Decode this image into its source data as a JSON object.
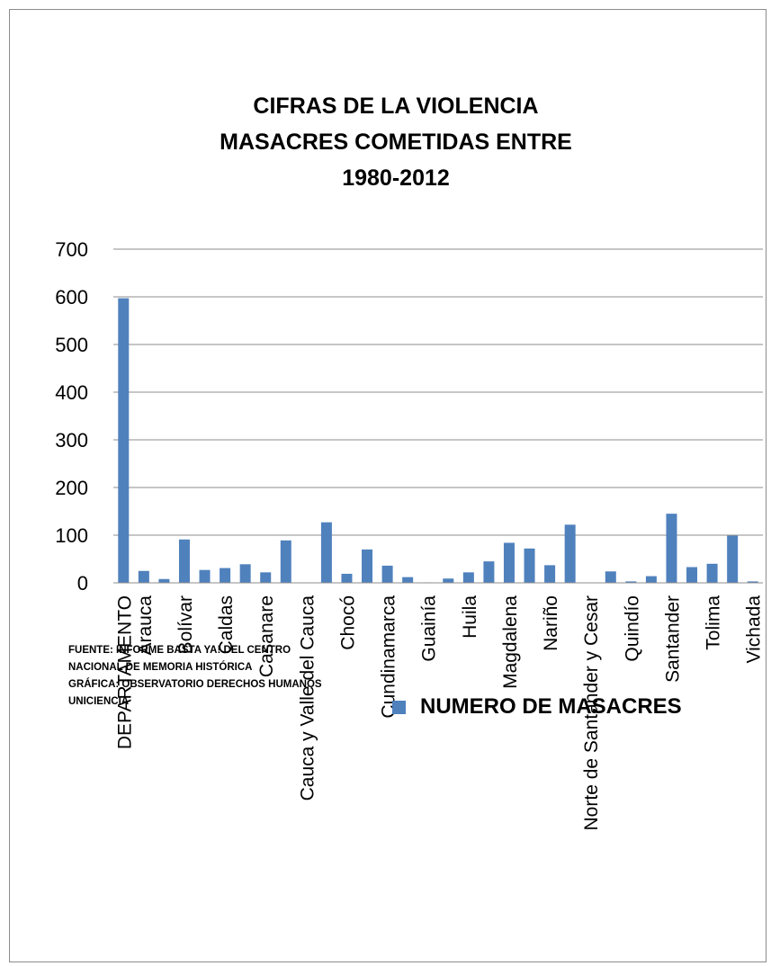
{
  "chart_data": {
    "type": "bar",
    "title": [
      "CIFRAS DE LA VIOLENCIA",
      "MASACRES COMETIDAS ENTRE",
      "1980-2012"
    ],
    "categories": [
      "DEPARTAMENTO",
      "Arauca",
      "",
      "Bolívar",
      "",
      "Caldas",
      "",
      "Casanare",
      "",
      "Cauca y Valle del Cauca",
      "",
      "Chocó",
      "",
      "Cundinamarca",
      "",
      "Guainía",
      "",
      "Huila",
      "",
      "Magdalena",
      "",
      "Nariño",
      "",
      "Norte de Santander y Cesar",
      "",
      "Quindío",
      "",
      "Santander",
      "",
      "Tolima",
      "",
      "Vichada"
    ],
    "series": [
      {
        "name": "NUMERO DE MASACRES",
        "values": [
          597,
          25,
          8,
          91,
          27,
          31,
          39,
          22,
          89,
          0,
          127,
          19,
          70,
          36,
          12,
          1,
          9,
          22,
          45,
          84,
          72,
          37,
          122,
          0,
          24,
          3,
          14,
          145,
          33,
          40,
          99,
          3
        ]
      }
    ],
    "ylim": [
      0,
      700
    ],
    "yticks": [
      0,
      100,
      200,
      300,
      400,
      500,
      600,
      700
    ],
    "grid": true,
    "legend_position": "bottom-right",
    "colors": {
      "bar": "#4f81bd",
      "grid": "#8c8c8c",
      "axis": "#8c8c8c",
      "text": "#000000"
    }
  },
  "source_note": [
    "FUENTE: INFORME BASTA YA! DEL CENTRO",
    "NACIONAL DE MEMORIA HISTÓRICA",
    "GRÁFICA: OBSERVATORIO DERECHOS HUMANOS",
    "UNICIENCIA"
  ]
}
